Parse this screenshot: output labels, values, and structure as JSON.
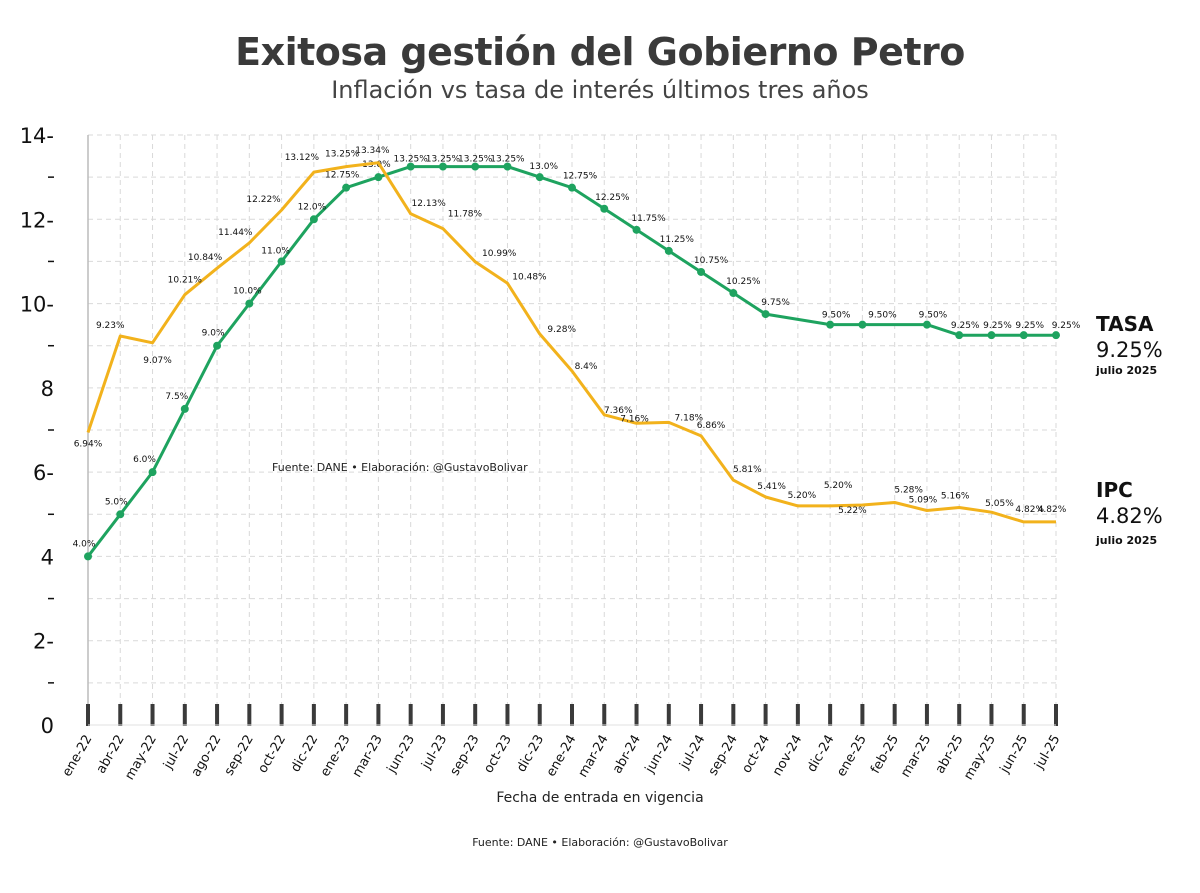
{
  "title": "Exitosa gestión del Gobierno Petro",
  "subtitle": "Inflación vs tasa de interés últimos tres años",
  "source_note": "Fuente: DANE • Elaboración: @GustavoBolivar",
  "footer_source": "Fuente: DANE • Elaboración: @GustavoBolivar",
  "xlabel": "Fecha de entrada en vigencia",
  "legend": {
    "tasa": {
      "title": "TASA",
      "value": "9.25%",
      "date": "julio 2025"
    },
    "ipc": {
      "title": "IPC",
      "value": "4.82%",
      "date": "julio 2025"
    }
  },
  "colors": {
    "tasa": "#1ea35f",
    "ipc": "#f2b21c",
    "grid": "#d9d9d9",
    "axis": "#333333"
  },
  "chart_data": {
    "type": "line",
    "ylim": [
      0,
      14
    ],
    "yticks": [
      "0",
      "2-",
      "4",
      "6-",
      "8",
      "10-",
      "12-",
      "14-"
    ],
    "ytick_values": [
      0,
      2,
      4,
      6,
      8,
      10,
      12,
      14
    ],
    "grid": true,
    "categories": [
      "ene-22",
      "abr-22",
      "may-22",
      "jul-22",
      "ago-22",
      "sep-22",
      "oct-22",
      "dic-22",
      "ene-23",
      "mar-23",
      "jun-23",
      "jul-23",
      "sep-23",
      "oct-23",
      "dic-23",
      "ene-24",
      "mar-24",
      "abr-24",
      "jun-24",
      "jul-24",
      "sep-24",
      "oct-24",
      "nov-24",
      "dic-24",
      "ene-25",
      "feb-25",
      "mar-25",
      "abr-25",
      "may-25",
      "jun-25",
      "jul-25"
    ],
    "series": [
      {
        "name": "TASA",
        "key": "tasa",
        "points": [
          {
            "x": 0,
            "y": 4.0,
            "label": "4.0%"
          },
          {
            "x": 1,
            "y": 5.0,
            "label": "5.0%"
          },
          {
            "x": 2,
            "y": 6.0,
            "label": "6.0%"
          },
          {
            "x": 3,
            "y": 7.5,
            "label": "7.5%"
          },
          {
            "x": 4,
            "y": 9.0,
            "label": "9.0%"
          },
          {
            "x": 5,
            "y": 10.0,
            "label": "10.0%"
          },
          {
            "x": 6,
            "y": 11.0,
            "label": "11.0%"
          },
          {
            "x": 7,
            "y": 12.0,
            "label": "12.0%"
          },
          {
            "x": 8,
            "y": 12.75,
            "label": "12.75%"
          },
          {
            "x": 9,
            "y": 13.0,
            "label": "13.0%"
          },
          {
            "x": 10,
            "y": 13.25,
            "label": "13.25%"
          },
          {
            "x": 11,
            "y": 13.25,
            "label": "13.25%"
          },
          {
            "x": 12,
            "y": 13.25,
            "label": "13.25%"
          },
          {
            "x": 13,
            "y": 13.25,
            "label": "13.25%"
          },
          {
            "x": 14,
            "y": 13.0,
            "label": "13.0%"
          },
          {
            "x": 15,
            "y": 12.75,
            "label": "12.75%"
          },
          {
            "x": 16,
            "y": 12.25,
            "label": "12.25%"
          },
          {
            "x": 17,
            "y": 11.75,
            "label": "11.75%"
          },
          {
            "x": 18,
            "y": 11.25,
            "label": "11.25%"
          },
          {
            "x": 19,
            "y": 10.75,
            "label": "10.75%"
          },
          {
            "x": 20,
            "y": 10.25,
            "label": "10.25%"
          },
          {
            "x": 21,
            "y": 9.75,
            "label": "9.75%"
          },
          {
            "x": 23,
            "y": 9.5,
            "label": "9.50%"
          },
          {
            "x": 24,
            "y": 9.5,
            "label": "9.50%"
          },
          {
            "x": 26,
            "y": 9.5,
            "label": "9.50%"
          },
          {
            "x": 27,
            "y": 9.25,
            "label": "9.25%"
          },
          {
            "x": 28,
            "y": 9.25,
            "label": "9.25%"
          },
          {
            "x": 29,
            "y": 9.25,
            "label": "9.25%"
          },
          {
            "x": 30,
            "y": 9.25,
            "label": "9.25%"
          }
        ]
      },
      {
        "name": "IPC",
        "key": "ipc",
        "points": [
          {
            "x": 0,
            "y": 6.94,
            "label": "6.94%"
          },
          {
            "x": 1,
            "y": 9.23,
            "label": "9.23%"
          },
          {
            "x": 2,
            "y": 9.07,
            "label": "9.07%"
          },
          {
            "x": 3,
            "y": 10.21,
            "label": "10.21%"
          },
          {
            "x": 4,
            "y": 10.84,
            "label": "10.84%"
          },
          {
            "x": 5,
            "y": 11.44,
            "label": "11.44%"
          },
          {
            "x": 6,
            "y": 12.22,
            "label": "12.22%"
          },
          {
            "x": 7,
            "y": 13.12,
            "label": "13.12%"
          },
          {
            "x": 8,
            "y": 13.25,
            "label": "13.25%"
          },
          {
            "x": 9,
            "y": 13.34,
            "label": "13.34%"
          },
          {
            "x": 10,
            "y": 12.13,
            "label": "12.13%"
          },
          {
            "x": 11,
            "y": 11.78,
            "label": "11.78%"
          },
          {
            "x": 12,
            "y": 10.99,
            "label": "10.99%"
          },
          {
            "x": 13,
            "y": 10.48,
            "label": "10.48%"
          },
          {
            "x": 14,
            "y": 9.28,
            "label": "9.28%"
          },
          {
            "x": 15,
            "y": 8.4,
            "label": "8.4%"
          },
          {
            "x": 16,
            "y": 7.36,
            "label": "7.36%"
          },
          {
            "x": 17,
            "y": 7.16,
            "label": "7.16%"
          },
          {
            "x": 18,
            "y": 7.18,
            "label": "7.18%"
          },
          {
            "x": 19,
            "y": 6.86,
            "label": "6.86%"
          },
          {
            "x": 20,
            "y": 5.81,
            "label": "5.81%"
          },
          {
            "x": 21,
            "y": 5.41,
            "label": "5.41%"
          },
          {
            "x": 22,
            "y": 5.2,
            "label": "5.20%"
          },
          {
            "x": 23,
            "y": 5.2,
            "label": "5.20%"
          },
          {
            "x": 24,
            "y": 5.22,
            "label": "5.22%"
          },
          {
            "x": 25,
            "y": 5.28,
            "label": "5.28%"
          },
          {
            "x": 26,
            "y": 5.09,
            "label": "5.09%"
          },
          {
            "x": 27,
            "y": 5.16,
            "label": "5.16%"
          },
          {
            "x": 28,
            "y": 5.05,
            "label": "5.05%"
          },
          {
            "x": 29,
            "y": 4.82,
            "label": "4.82%"
          },
          {
            "x": 30,
            "y": 4.82,
            "label": "4.82%"
          }
        ]
      }
    ]
  }
}
